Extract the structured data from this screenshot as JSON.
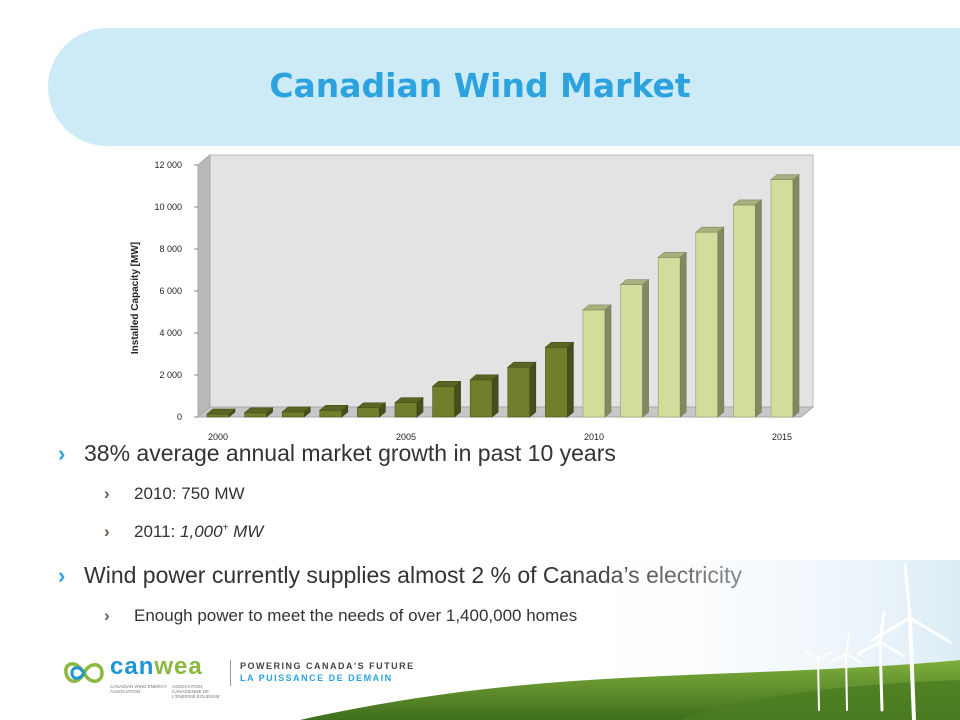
{
  "slide": {
    "title": "Canadian Wind Market"
  },
  "chart_data": {
    "type": "bar",
    "style": "3d-column",
    "x": [
      2000,
      2001,
      2002,
      2003,
      2004,
      2005,
      2006,
      2007,
      2008,
      2009,
      2010,
      2011,
      2012,
      2013,
      2014,
      2015
    ],
    "values": [
      140,
      200,
      240,
      320,
      440,
      680,
      1460,
      1770,
      2370,
      3320,
      5100,
      6300,
      7600,
      8800,
      10100,
      11300
    ],
    "xtick_labels": [
      "2000",
      "2005",
      "2010",
      "2015"
    ],
    "xticks_at": [
      2000,
      2005,
      2010,
      2015
    ],
    "yticks": [
      0,
      2000,
      4000,
      6000,
      8000,
      10000,
      12000
    ],
    "ytick_labels": [
      "0",
      "2 000",
      "4 000",
      "6 000",
      "8 000",
      "10 000",
      "12 000"
    ],
    "ylabel": "Installed Capacity [MW]",
    "xlabel": "",
    "title": "",
    "ylim": [
      0,
      12000
    ],
    "grid": false,
    "bar_colors": {
      "historical": "#6f7f2c",
      "projected": "#d4dc9c"
    },
    "projected_from": 2010
  },
  "bullets": {
    "main1": "38% average annual market growth in past 10 years",
    "sub1": "2010:  750 MW",
    "sub2_prefix": "2011:  ",
    "sub2_value": "1,000",
    "sub2_sup": "+",
    "sub2_unit": " MW",
    "main2": "Wind power currently supplies almost 2 % of Canada’s electricity",
    "sub3": "Enough power to meet the needs of over 1,400,000 homes"
  },
  "footer": {
    "logo_part1": "can",
    "logo_part2": "wea",
    "logo_sub_en": "CANADIAN WIND ENERGY ASSOCIATION",
    "logo_sub_fr": "ASSOCIATION CANADIENNE DE L'ÉNERGIE ÉOLIENNE",
    "tagline_en": "POWERING CANADA'S FUTURE",
    "tagline_fr": "LA PUISSANCE DE DEMAIN"
  },
  "colors": {
    "accent": "#2ca3df",
    "title_band": "#cdeaf7",
    "text": "#333333"
  }
}
